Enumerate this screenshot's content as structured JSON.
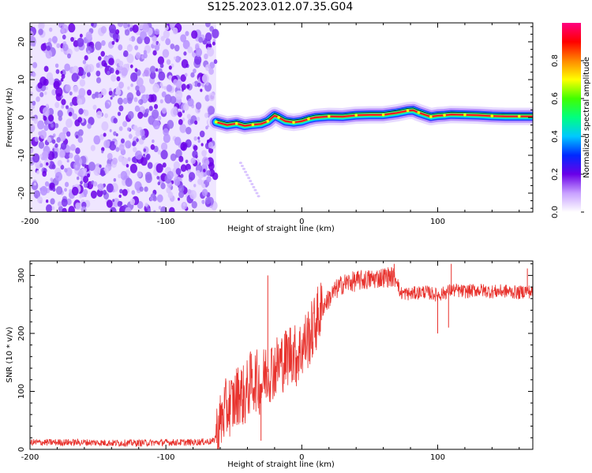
{
  "title": "S125.2023.012.07.35.G04",
  "chart_data": [
    {
      "type": "heatmap",
      "xlabel": "Height of straight line (km)",
      "ylabel": "Frequency (Hz)",
      "xlim": [
        -200,
        170
      ],
      "ylim": [
        -25,
        25
      ],
      "x_ticks": [
        -200,
        -100,
        0,
        100
      ],
      "y_ticks": [
        -20,
        -10,
        0,
        10,
        20
      ],
      "noise_region_x": [
        -200,
        -63
      ],
      "signal_start_x": -63,
      "colorbar": {
        "label": "Normalized spectral amplitude",
        "range": [
          0,
          1
        ],
        "ticks": [
          "0.0",
          "0.2",
          "0.4",
          "0.6",
          "0.8"
        ],
        "colors": [
          "#ffffff",
          "#c8a0ff",
          "#6a00e8",
          "#0028ff",
          "#00c8ff",
          "#00ff80",
          "#40ff00",
          "#ffff00",
          "#ff8800",
          "#ff0000",
          "#ff0080"
        ]
      },
      "ridge": {
        "x": [
          -63,
          -55,
          -48,
          -42,
          -36,
          -30,
          -25,
          -20,
          -17,
          -12,
          -6,
          0,
          5,
          10,
          20,
          30,
          40,
          50,
          60,
          70,
          78,
          82,
          86,
          90,
          95,
          100,
          105,
          110,
          120,
          130,
          140,
          150,
          160,
          170
        ],
        "y": [
          -1.2,
          -2.0,
          -1.6,
          -2.2,
          -1.9,
          -1.7,
          -1.0,
          0.5,
          0.0,
          -1.0,
          -1.3,
          -1.0,
          -0.4,
          0.0,
          0.3,
          0.2,
          0.6,
          0.7,
          0.7,
          1.2,
          1.8,
          1.9,
          1.3,
          0.8,
          0.2,
          0.5,
          0.6,
          0.8,
          0.7,
          0.6,
          0.4,
          0.3,
          0.3,
          0.3
        ]
      }
    },
    {
      "type": "line",
      "xlabel": "Height of straight line (km)",
      "ylabel": "SNR (10 * v/v)",
      "xlim": [
        -200,
        170
      ],
      "ylim": [
        0,
        325
      ],
      "x_ticks": [
        -200,
        -100,
        0,
        100
      ],
      "y_ticks": [
        0,
        100,
        200,
        300
      ],
      "color": "#e8332e",
      "series": [
        {
          "x": [
            -200,
            -180,
            -160,
            -140,
            -120,
            -100,
            -80,
            -65,
            -62,
            -58,
            -54,
            -50,
            -46,
            -42,
            -38,
            -34,
            -30,
            -27,
            -24,
            -20,
            -16,
            -12,
            -8,
            -4,
            0,
            4,
            8,
            12,
            16,
            20,
            25,
            30,
            35,
            40,
            45,
            50,
            55,
            60,
            65,
            70,
            72,
            80,
            90,
            100,
            105,
            110,
            120,
            130,
            140,
            150,
            160,
            165,
            170
          ],
          "y": [
            12,
            12,
            12,
            11,
            11,
            12,
            12,
            14,
            30,
            60,
            75,
            80,
            100,
            90,
            115,
            120,
            110,
            130,
            135,
            140,
            150,
            155,
            170,
            160,
            175,
            190,
            205,
            230,
            248,
            260,
            275,
            285,
            288,
            290,
            292,
            293,
            295,
            297,
            298,
            296,
            270,
            268,
            272,
            266,
            270,
            275,
            272,
            275,
            272,
            273,
            270,
            274,
            270
          ]
        }
      ],
      "spikes": [
        {
          "x": -25,
          "y": 300
        },
        {
          "x": -30,
          "y": 15
        },
        {
          "x": -15,
          "y": 185
        },
        {
          "x": 68,
          "y": 320
        },
        {
          "x": 100,
          "y": 200
        },
        {
          "x": 110,
          "y": 320
        },
        {
          "x": 108,
          "y": 210
        },
        {
          "x": 166,
          "y": 312
        }
      ]
    }
  ]
}
